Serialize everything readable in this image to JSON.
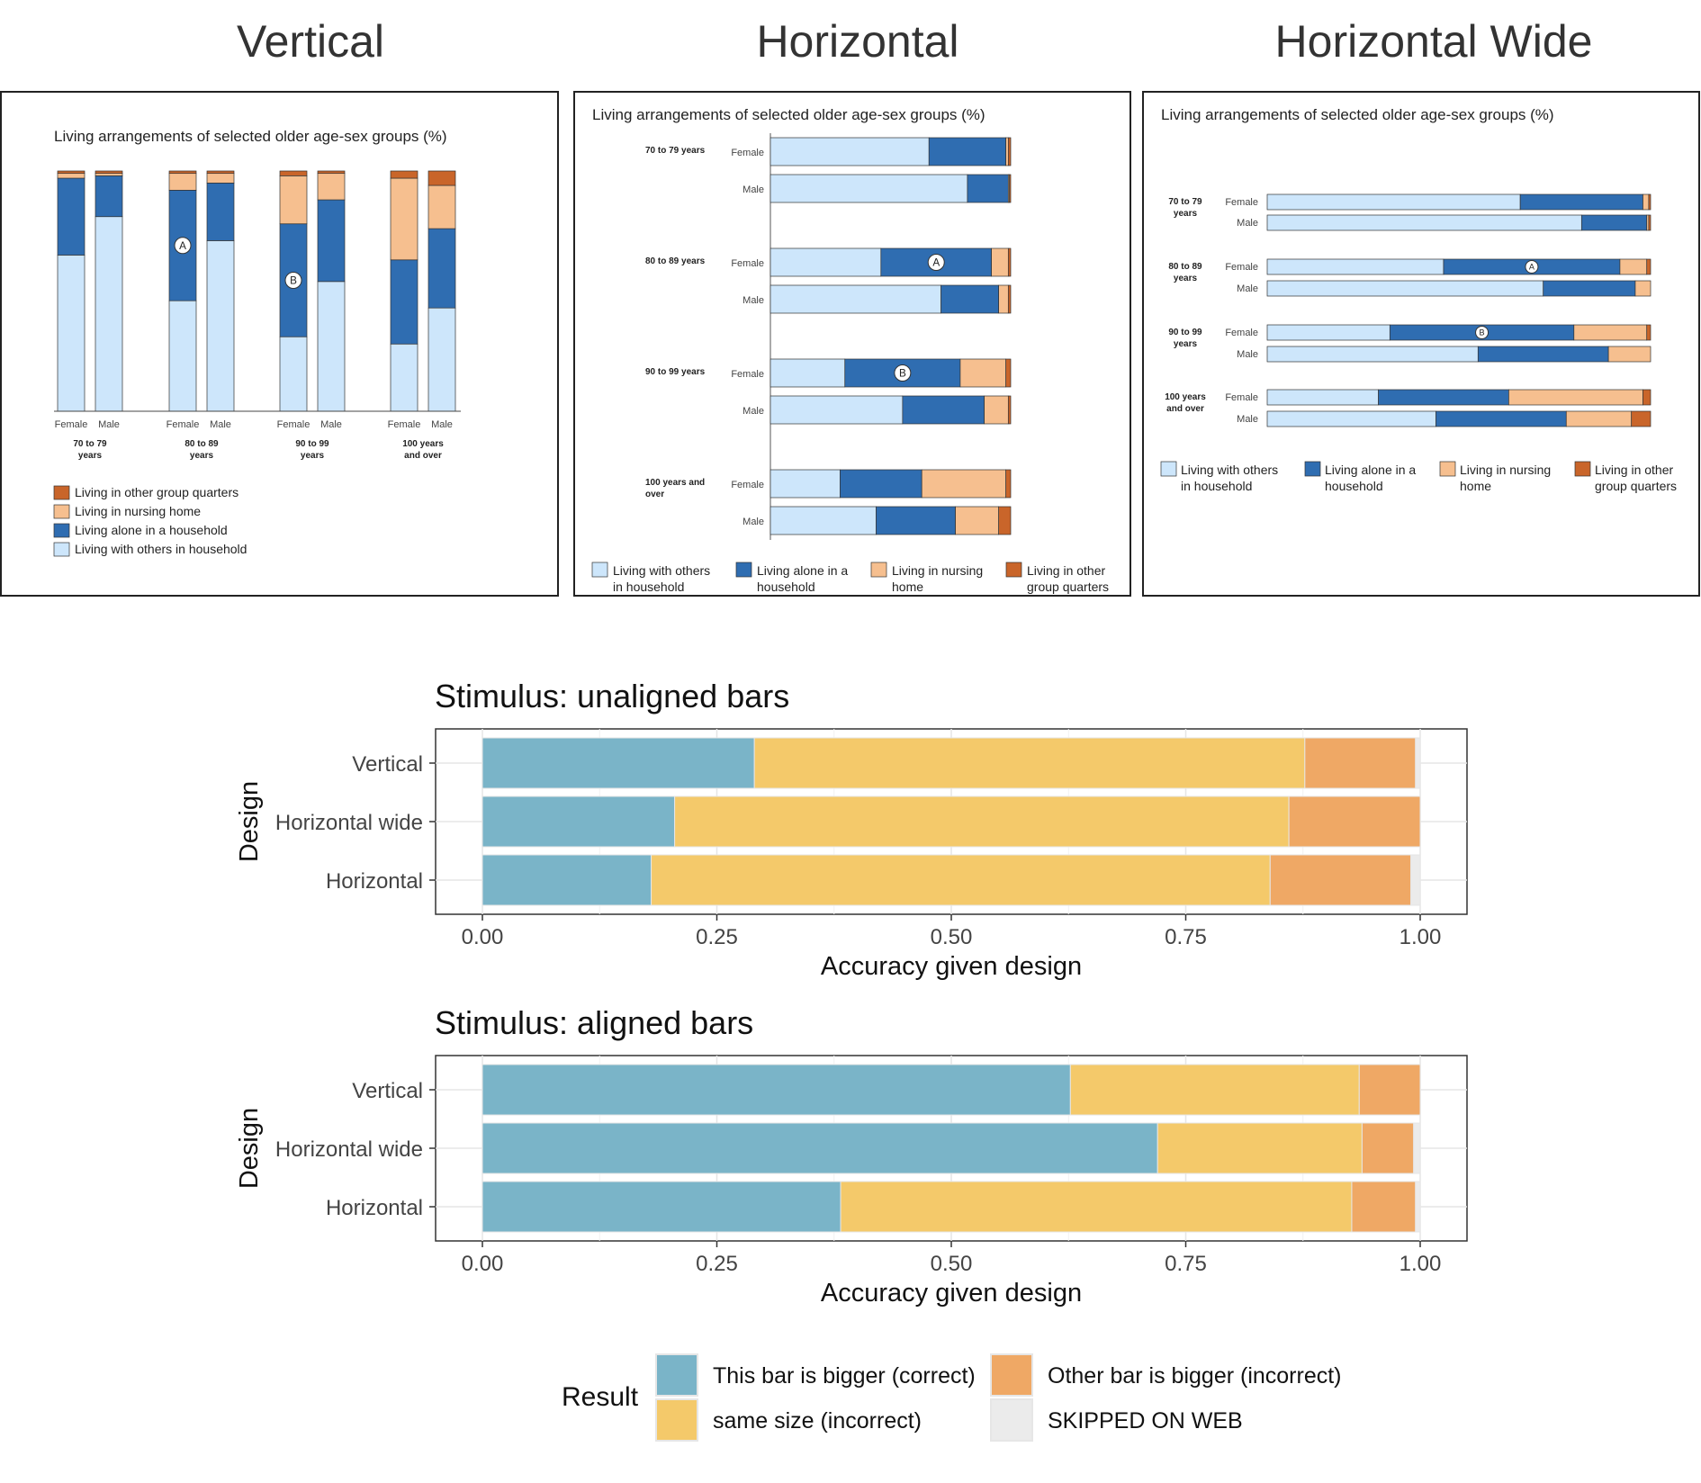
{
  "colors": {
    "light_blue": "#cde6fb",
    "dark_blue": "#2f6db1",
    "peach": "#f6bf8f",
    "rust": "#c9652a",
    "res_correct": "#7ab4c8",
    "res_same": "#f4c96a",
    "res_other": "#efa865",
    "res_skipped": "#ebebeb"
  },
  "panels": {
    "vertical_title": "Vertical",
    "horizontal_title": "Horizontal",
    "wide_title": "Horizontal Wide",
    "inner_title": "Living arrangements of selected older age-sex groups (%)"
  },
  "legend_items": [
    "Living in other group quarters",
    "Living in nursing home",
    "Living alone in a household",
    "Living with others in household"
  ],
  "legend_two_line": [
    [
      "Living with others",
      "in household"
    ],
    [
      "Living alone in a",
      "household"
    ],
    [
      "Living in nursing",
      "home"
    ],
    [
      "Living in other",
      "group quarters"
    ]
  ],
  "sexes": [
    "Female",
    "Male"
  ],
  "age_groups_vertical": [
    [
      "70 to 79",
      "years"
    ],
    [
      "80 to 89",
      "years"
    ],
    [
      "90 to 99",
      "years"
    ],
    [
      "100 years",
      "and over"
    ]
  ],
  "age_groups_horizontal": [
    [
      "70 to 79 years"
    ],
    [
      "80 to 89 years"
    ],
    [
      "90 to 99 years"
    ],
    [
      "100 years and",
      "over"
    ]
  ],
  "age_groups_wide": [
    [
      "70 to 79",
      "years"
    ],
    [
      "80 to 89",
      "years"
    ],
    [
      "90 to 99",
      "years"
    ],
    [
      "100 years",
      "and over"
    ]
  ],
  "markers": [
    "A",
    "B"
  ],
  "chart_data": [
    {
      "type": "bar",
      "orientation": "vertical",
      "stacked": true,
      "title": "Living arrangements of selected older age-sex groups (%)",
      "categories": [
        "70 to 79 years Female",
        "70 to 79 years Male",
        "80 to 89 years Female",
        "80 to 89 years Male",
        "90 to 99 years Female",
        "90 to 99 years Male",
        "100 years and over Female",
        "100 years and over Male"
      ],
      "series": [
        {
          "name": "Living with others in household",
          "values": [
            65,
            81,
            46,
            71,
            31,
            54,
            28,
            43
          ]
        },
        {
          "name": "Living alone in a household",
          "values": [
            32,
            17,
            46,
            24,
            47,
            34,
            35,
            33
          ]
        },
        {
          "name": "Living in nursing home",
          "values": [
            2,
            1,
            7,
            4,
            20,
            11,
            34,
            18
          ]
        },
        {
          "name": "Living in other group quarters",
          "values": [
            1,
            1,
            1,
            1,
            2,
            1,
            3,
            6
          ]
        }
      ],
      "annotations": [
        {
          "label": "A",
          "category": "80 to 89 years Female"
        },
        {
          "label": "B",
          "category": "90 to 99 years Female"
        }
      ]
    },
    {
      "type": "bar",
      "orientation": "horizontal",
      "stacked": true,
      "title": "Living arrangements of selected older age-sex groups (%)",
      "categories": [
        "70 to 79 years Female",
        "70 to 79 years Male",
        "80 to 89 years Female",
        "80 to 89 years Male",
        "90 to 99 years Female",
        "90 to 99 years Male",
        "100 years and over Female",
        "100 years and over Male"
      ],
      "series": [
        {
          "name": "Living with others in household",
          "values": [
            66,
            82,
            46,
            71,
            31,
            55,
            29,
            44
          ]
        },
        {
          "name": "Living alone in a household",
          "values": [
            32,
            17,
            46,
            24,
            48,
            34,
            34,
            33
          ]
        },
        {
          "name": "Living in nursing home",
          "values": [
            1,
            0.5,
            7,
            4,
            19,
            10,
            35,
            18
          ]
        },
        {
          "name": "Living in other group quarters",
          "values": [
            1,
            0.5,
            1,
            1,
            2,
            1,
            2,
            5
          ]
        }
      ],
      "annotations": [
        {
          "label": "A",
          "category": "80 to 89 years Female"
        },
        {
          "label": "B",
          "category": "90 to 99 years Female"
        }
      ]
    },
    {
      "type": "bar",
      "orientation": "horizontal",
      "stacked": true,
      "title": "Living arrangements of selected older age-sex groups (%)",
      "categories": [
        "70 to 79 years Female",
        "70 to 79 years Male",
        "80 to 89 years Female",
        "80 to 89 years Male",
        "90 to 99 years Female",
        "90 to 99 years Male",
        "100 years and over Female",
        "100 years and over Male"
      ],
      "series": [
        {
          "name": "Living with others in household",
          "values": [
            66,
            82,
            46,
            72,
            32,
            55,
            29,
            44
          ]
        },
        {
          "name": "Living alone in a household",
          "values": [
            32,
            17,
            46,
            24,
            48,
            34,
            34,
            34
          ]
        },
        {
          "name": "Living in nursing home",
          "values": [
            1.5,
            0.5,
            7,
            4,
            19,
            11,
            35,
            17
          ]
        },
        {
          "name": "Living in other group quarters",
          "values": [
            0.5,
            0.5,
            1,
            0,
            1,
            0,
            2,
            5
          ]
        }
      ],
      "annotations": [
        {
          "label": "A",
          "category": "80 to 89 years Female"
        },
        {
          "label": "B",
          "category": "90 to 99 years Female"
        }
      ]
    },
    {
      "type": "bar",
      "orientation": "horizontal",
      "stacked": true,
      "title": "Stimulus: unaligned bars",
      "xlabel": "Accuracy given design",
      "ylabel": "Design",
      "categories": [
        "Vertical",
        "Horizontal wide",
        "Horizontal"
      ],
      "xlim": [
        0,
        1
      ],
      "xticks": [
        "0.00",
        "0.25",
        "0.50",
        "0.75",
        "1.00"
      ],
      "series": [
        {
          "name": "This bar is bigger (correct)",
          "values": [
            0.29,
            0.205,
            0.18
          ]
        },
        {
          "name": "same size (incorrect)",
          "values": [
            0.587,
            0.655,
            0.66
          ]
        },
        {
          "name": "Other bar is bigger (incorrect)",
          "values": [
            0.118,
            0.14,
            0.15
          ]
        },
        {
          "name": "SKIPPED ON WEB",
          "values": [
            0.005,
            0,
            0.01
          ]
        }
      ]
    },
    {
      "type": "bar",
      "orientation": "horizontal",
      "stacked": true,
      "title": "Stimulus: aligned bars",
      "xlabel": "Accuracy given design",
      "ylabel": "Design",
      "categories": [
        "Vertical",
        "Horizontal wide",
        "Horizontal"
      ],
      "xlim": [
        0,
        1
      ],
      "xticks": [
        "0.00",
        "0.25",
        "0.50",
        "0.75",
        "1.00"
      ],
      "series": [
        {
          "name": "This bar is bigger (correct)",
          "values": [
            0.627,
            0.72,
            0.382
          ]
        },
        {
          "name": "same size (incorrect)",
          "values": [
            0.308,
            0.218,
            0.545
          ]
        },
        {
          "name": "Other bar is bigger (incorrect)",
          "values": [
            0.065,
            0.055,
            0.068
          ]
        },
        {
          "name": "SKIPPED ON WEB",
          "values": [
            0,
            0.007,
            0.005
          ]
        }
      ]
    }
  ],
  "result_legend": {
    "title": "Result",
    "items": [
      "This bar is bigger (correct)",
      "Other bar is bigger (incorrect)",
      "same size (incorrect)",
      "SKIPPED ON WEB"
    ]
  }
}
